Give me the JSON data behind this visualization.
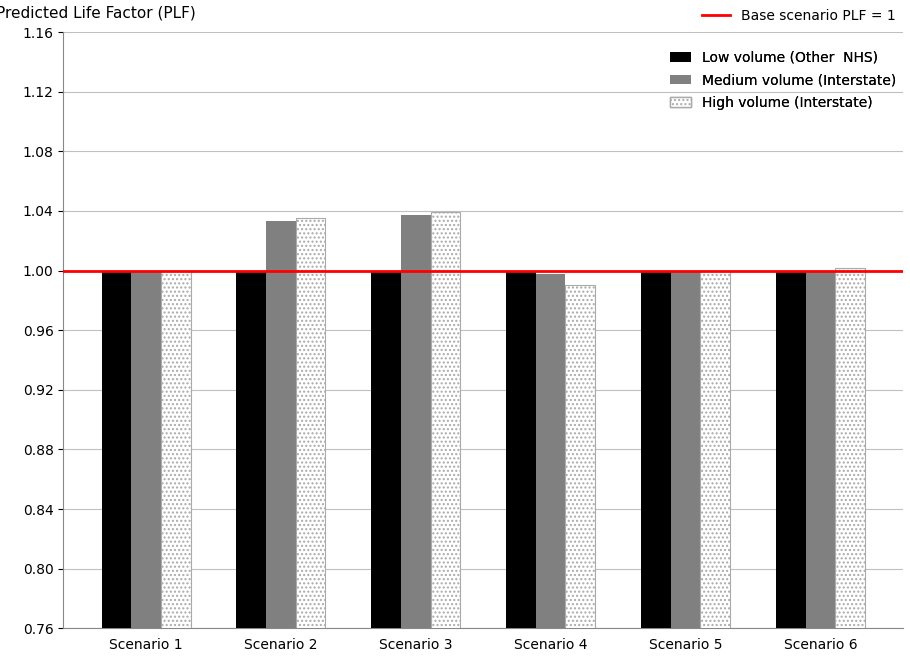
{
  "categories": [
    "Scenario 1",
    "Scenario 2",
    "Scenario 3",
    "Scenario 4",
    "Scenario 5",
    "Scenario 6"
  ],
  "low_volume": [
    1.0,
    1.0,
    1.0,
    1.0,
    1.0,
    1.0
  ],
  "medium_volume": [
    1.0,
    1.033,
    1.037,
    0.998,
    1.0,
    1.0
  ],
  "high_volume": [
    1.0,
    1.035,
    1.039,
    0.99,
    1.0,
    1.002
  ],
  "ylabel": "Predicted Life Factor (PLF)",
  "ylim": [
    0.76,
    1.16
  ],
  "yticks": [
    0.76,
    0.8,
    0.84,
    0.88,
    0.92,
    0.96,
    1.0,
    1.04,
    1.08,
    1.12,
    1.16
  ],
  "base_line_y": 1.0,
  "base_line_label": "Base scenario PLF = 1",
  "base_line_color": "#FF0000",
  "legend_labels": [
    "Low volume (Other  NHS)",
    "Medium volume (Interstate)",
    "High volume (Interstate)"
  ],
  "low_color": "#000000",
  "medium_color": "#808080",
  "high_hatch_color": "#aaaaaa",
  "bar_width": 0.22,
  "background_color": "#ffffff",
  "grid_color": "#c0c0c0",
  "axis_label_fontsize": 11,
  "tick_fontsize": 10,
  "legend_fontsize": 10
}
